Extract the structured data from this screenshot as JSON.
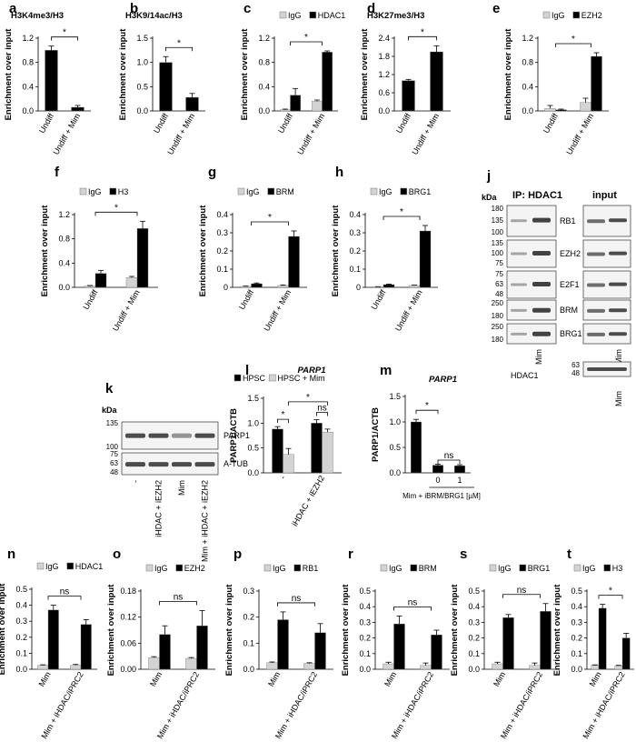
{
  "chart_data": [
    {
      "id": "a",
      "type": "bar",
      "panel_letter": "a",
      "title": "H3K4me3/H3",
      "ylabel": "Enrichment over input",
      "categories": [
        "Undiff",
        "Undiff + Mim"
      ],
      "ylim": [
        0,
        1.2
      ],
      "yticks": [
        "0.0",
        "0.4",
        "0.8",
        "1.2"
      ],
      "series": [
        {
          "color": "#000000",
          "values": [
            1.0,
            0.06
          ],
          "errors": [
            0.07,
            0.03
          ]
        }
      ],
      "significance": [
        {
          "from": 0,
          "to": 1,
          "label": "*"
        }
      ]
    },
    {
      "id": "b",
      "type": "bar",
      "panel_letter": "b",
      "title": "H3K9/14ac/H3",
      "ylabel": "Enrichment over input",
      "categories": [
        "Undiff",
        "Undiff + Mim"
      ],
      "ylim": [
        0,
        1.5
      ],
      "yticks": [
        "0.0",
        "0.5",
        "1.0",
        "1.5"
      ],
      "series": [
        {
          "color": "#000000",
          "values": [
            1.0,
            0.28
          ],
          "errors": [
            0.12,
            0.08
          ]
        }
      ],
      "significance": [
        {
          "from": 0,
          "to": 1,
          "label": "*"
        }
      ]
    },
    {
      "id": "c",
      "type": "bar",
      "panel_letter": "c",
      "title": "",
      "ylabel": "Enrichment over input",
      "categories": [
        "Undiff",
        "Undiff + Mim"
      ],
      "ylim": [
        0,
        1.2
      ],
      "yticks": [
        "0.0",
        "0.4",
        "0.8",
        "1.2"
      ],
      "series": [
        {
          "name": "IgG",
          "color": "#d3d3d3",
          "values": [
            0.02,
            0.16
          ],
          "errors": [
            0.01,
            0.02
          ]
        },
        {
          "name": "HDAC1",
          "color": "#000000",
          "values": [
            0.26,
            0.97
          ],
          "errors": [
            0.11,
            0.02
          ]
        }
      ],
      "significance": [
        {
          "from": 0,
          "to": 1,
          "label": "*"
        }
      ]
    },
    {
      "id": "d",
      "type": "bar",
      "panel_letter": "d",
      "title": "H3K27me3/H3",
      "ylabel": "Enrichment over input",
      "categories": [
        "Undiff",
        "Undiff + Mim"
      ],
      "ylim": [
        0,
        2.4
      ],
      "yticks": [
        "0.0",
        "0.6",
        "1.2",
        "1.8",
        "2.4"
      ],
      "series": [
        {
          "color": "#000000",
          "values": [
            1.0,
            1.95
          ],
          "errors": [
            0.04,
            0.2
          ]
        }
      ],
      "significance": [
        {
          "from": 0,
          "to": 1,
          "label": "*"
        }
      ]
    },
    {
      "id": "e",
      "type": "bar",
      "panel_letter": "e",
      "title": "",
      "ylabel": "Enrichment over input",
      "categories": [
        "Undiff",
        "Undiff + Mim"
      ],
      "ylim": [
        0,
        1.2
      ],
      "yticks": [
        "0.0",
        "0.4",
        "0.8",
        "1.2"
      ],
      "series": [
        {
          "name": "IgG",
          "color": "#d3d3d3",
          "values": [
            0.04,
            0.14
          ],
          "errors": [
            0.05,
            0.07
          ]
        },
        {
          "name": "EZH2",
          "color": "#000000",
          "values": [
            0.02,
            0.9
          ],
          "errors": [
            0.01,
            0.06
          ]
        }
      ],
      "significance": [
        {
          "from": 0,
          "to": 1,
          "label": "*"
        }
      ]
    },
    {
      "id": "f",
      "type": "bar",
      "panel_letter": "f",
      "title": "",
      "ylabel": "Enrichment over input",
      "categories": [
        "Undiff",
        "Undiff + Mim"
      ],
      "ylim": [
        0,
        1.2
      ],
      "yticks": [
        "0.0",
        "0.4",
        "0.8",
        "1.2"
      ],
      "series": [
        {
          "name": "IgG",
          "color": "#d3d3d3",
          "values": [
            0.02,
            0.16
          ],
          "errors": [
            0.01,
            0.02
          ]
        },
        {
          "name": "H3",
          "color": "#000000",
          "values": [
            0.23,
            0.97
          ],
          "errors": [
            0.05,
            0.12
          ]
        }
      ],
      "significance": [
        {
          "from": 0,
          "to": 1,
          "label": "*"
        }
      ]
    },
    {
      "id": "g",
      "type": "bar",
      "panel_letter": "g",
      "title": "",
      "ylabel": "Enrichment over input",
      "categories": [
        "Undiff",
        "Undiff + Mim"
      ],
      "ylim": [
        0,
        0.4
      ],
      "yticks": [
        "0",
        "0.1",
        "0.2",
        "0.3",
        "0.4"
      ],
      "series": [
        {
          "name": "IgG",
          "color": "#d3d3d3",
          "values": [
            0.005,
            0.01
          ],
          "errors": [
            0.002,
            0.003
          ]
        },
        {
          "name": "BRM",
          "color": "#000000",
          "values": [
            0.02,
            0.28
          ],
          "errors": [
            0.004,
            0.03
          ]
        }
      ],
      "significance": [
        {
          "from": 0,
          "to": 1,
          "label": "*"
        }
      ]
    },
    {
      "id": "h",
      "type": "bar",
      "panel_letter": "h",
      "title": "",
      "ylabel": "Enrichment over input",
      "categories": [
        "Undiff",
        "Undiff + Mim"
      ],
      "ylim": [
        0,
        0.4
      ],
      "yticks": [
        "0",
        "0.1",
        "0.2",
        "0.3",
        "0.4"
      ],
      "series": [
        {
          "name": "IgG",
          "color": "#d3d3d3",
          "values": [
            0.003,
            0.01
          ],
          "errors": [
            0.001,
            0.002
          ]
        },
        {
          "name": "BRG1",
          "color": "#000000",
          "values": [
            0.015,
            0.31
          ],
          "errors": [
            0.003,
            0.03
          ]
        }
      ],
      "significance": [
        {
          "from": 0,
          "to": 1,
          "label": "*"
        }
      ]
    },
    {
      "id": "l",
      "type": "bar",
      "panel_letter": "l",
      "title": "PARP1",
      "ylabel": "PARP1/ACTB",
      "categories": [
        "-",
        "iHDAC + iEZH2"
      ],
      "ylim": [
        0,
        1.5
      ],
      "yticks": [
        "0.0",
        "0.5",
        "1.0",
        "1.5"
      ],
      "series": [
        {
          "name": "HPSC",
          "color": "#000000",
          "values": [
            0.88,
            1.0
          ],
          "errors": [
            0.05,
            0.07
          ]
        },
        {
          "name": "HPSC + Mim",
          "color": "#d3d3d3",
          "values": [
            0.37,
            0.82
          ],
          "errors": [
            0.12,
            0.06
          ]
        }
      ],
      "significance": [
        {
          "from_bar": [
            0,
            0
          ],
          "to_bar": [
            0,
            1
          ],
          "label": "*"
        },
        {
          "from_bar": [
            1,
            0
          ],
          "to_bar": [
            1,
            1
          ],
          "label": "ns"
        },
        {
          "from_bar": [
            0,
            1
          ],
          "to_bar": [
            1,
            1
          ],
          "label": "*"
        }
      ]
    },
    {
      "id": "m",
      "type": "bar",
      "panel_letter": "m",
      "title": "PARP1",
      "ylabel": "PARP1/ACTB",
      "categories": [
        "",
        "0",
        "1"
      ],
      "xlabel": "Mim + iBRM/BRG1 [µM]",
      "ylim": [
        0,
        1.5
      ],
      "yticks": [
        "0.0",
        "0.5",
        "1.0",
        "1.5"
      ],
      "series": [
        {
          "color": "#000000",
          "values": [
            1.0,
            0.15,
            0.14
          ],
          "errors": [
            0.05,
            0.02,
            0.02
          ]
        }
      ],
      "significance": [
        {
          "from": 0,
          "to": 1,
          "label": "*"
        },
        {
          "from": 1,
          "to": 2,
          "label": "ns"
        }
      ]
    },
    {
      "id": "n",
      "type": "bar",
      "panel_letter": "n",
      "title": "",
      "ylabel": "Enrichment over input",
      "categories": [
        "Mim",
        "Mim + iHDAC/iPRC2"
      ],
      "ylim": [
        0,
        0.5
      ],
      "yticks": [
        "0.0",
        "0.1",
        "0.2",
        "0.3",
        "0.4",
        "0.5"
      ],
      "series": [
        {
          "name": "IgG",
          "color": "#d3d3d3",
          "values": [
            0.025,
            0.025
          ],
          "errors": [
            0.003,
            0.005
          ]
        },
        {
          "name": "HDAC1",
          "color": "#000000",
          "values": [
            0.37,
            0.28
          ],
          "errors": [
            0.03,
            0.03
          ]
        }
      ],
      "significance": [
        {
          "from": 0,
          "to": 1,
          "label": "ns"
        }
      ]
    },
    {
      "id": "o",
      "type": "bar",
      "panel_letter": "o",
      "title": "",
      "ylabel": "Enrichment over input",
      "categories": [
        "Mim",
        "Mim + iHDAC/iPRC2"
      ],
      "ylim": [
        0,
        0.18
      ],
      "yticks": [
        "0.00",
        "0.06",
        "0.12",
        "0.18"
      ],
      "series": [
        {
          "name": "IgG",
          "color": "#d3d3d3",
          "values": [
            0.027,
            0.025
          ],
          "errors": [
            0.002,
            0.002
          ]
        },
        {
          "name": "EZH2",
          "color": "#000000",
          "values": [
            0.08,
            0.1
          ],
          "errors": [
            0.02,
            0.035
          ]
        }
      ],
      "significance": [
        {
          "from": 0,
          "to": 1,
          "label": "ns"
        }
      ]
    },
    {
      "id": "p",
      "type": "bar",
      "panel_letter": "p",
      "title": "",
      "ylabel": "Enrichment over input",
      "categories": [
        "Mim",
        "Mim + iHDAC/iPRC2"
      ],
      "ylim": [
        0,
        0.3
      ],
      "yticks": [
        "0.0",
        "0.1",
        "0.2",
        "0.3"
      ],
      "series": [
        {
          "name": "IgG",
          "color": "#d3d3d3",
          "values": [
            0.025,
            0.022
          ],
          "errors": [
            0.003,
            0.003
          ]
        },
        {
          "name": "RB1",
          "color": "#000000",
          "values": [
            0.19,
            0.14
          ],
          "errors": [
            0.03,
            0.035
          ]
        }
      ],
      "significance": [
        {
          "from": 0,
          "to": 1,
          "label": "ns"
        }
      ]
    },
    {
      "id": "r",
      "type": "bar",
      "panel_letter": "r",
      "title": "",
      "ylabel": "Enrichment over input",
      "categories": [
        "Mim",
        "Mim + iHDAC/iPRC2"
      ],
      "ylim": [
        0,
        0.5
      ],
      "yticks": [
        "0.0",
        "0.1",
        "0.2",
        "0.3",
        "0.4",
        "0.5"
      ],
      "series": [
        {
          "name": "IgG",
          "color": "#d3d3d3",
          "values": [
            0.035,
            0.025
          ],
          "errors": [
            0.01,
            0.015
          ]
        },
        {
          "name": "BRM",
          "color": "#000000",
          "values": [
            0.29,
            0.22
          ],
          "errors": [
            0.05,
            0.03
          ]
        }
      ],
      "significance": [
        {
          "from": 0,
          "to": 1,
          "label": "ns"
        }
      ]
    },
    {
      "id": "s",
      "type": "bar",
      "panel_letter": "s",
      "title": "",
      "ylabel": "Enrichment over input",
      "categories": [
        "Mim",
        "Mim + iHDAC/iPRC2"
      ],
      "ylim": [
        0,
        0.5
      ],
      "yticks": [
        "0.0",
        "0.1",
        "0.2",
        "0.3",
        "0.4",
        "0.5"
      ],
      "series": [
        {
          "name": "IgG",
          "color": "#d3d3d3",
          "values": [
            0.035,
            0.025
          ],
          "errors": [
            0.01,
            0.015
          ]
        },
        {
          "name": "BRG1",
          "color": "#000000",
          "values": [
            0.33,
            0.37
          ],
          "errors": [
            0.02,
            0.05
          ]
        }
      ],
      "significance": [
        {
          "from": 0,
          "to": 1,
          "label": "ns"
        }
      ]
    },
    {
      "id": "t",
      "type": "bar",
      "panel_letter": "t",
      "title": "",
      "ylabel": "Enrichment over input",
      "categories": [
        "Mim",
        "Mim + iHDAC/iPRC2"
      ],
      "ylim": [
        0,
        0.5
      ],
      "yticks": [
        "0.0",
        "0.1",
        "0.2",
        "0.3",
        "0.4",
        "0.5"
      ],
      "series": [
        {
          "name": "IgG",
          "color": "#d3d3d3",
          "values": [
            0.025,
            0.022
          ],
          "errors": [
            0.003,
            0.003
          ]
        },
        {
          "name": "H3",
          "color": "#000000",
          "values": [
            0.39,
            0.2
          ],
          "errors": [
            0.025,
            0.03
          ]
        }
      ],
      "significance": [
        {
          "from": 0,
          "to": 1,
          "label": "*"
        }
      ]
    }
  ],
  "blots": {
    "j": {
      "panel_letter": "j",
      "kda_label": "kDa",
      "ip_title": "IP: HDAC1",
      "input_title": "input",
      "rows": [
        {
          "label": "RB1",
          "markers": [
            "180",
            "135",
            "100"
          ]
        },
        {
          "label": "EZH2",
          "markers": [
            "135",
            "100",
            "75"
          ]
        },
        {
          "label": "E2F1",
          "markers": [
            "75",
            "63",
            "48"
          ]
        },
        {
          "label": "BRM",
          "markers": [
            "250",
            "180"
          ]
        },
        {
          "label": "BRG1",
          "markers": [
            "250",
            "180"
          ]
        }
      ],
      "lane_label": "Mim",
      "hdac_label": "HDAC1",
      "hdac_markers": [
        "63",
        "48"
      ]
    },
    "k": {
      "panel_letter": "k",
      "kda_label": "kDa",
      "rows": [
        {
          "label": "PARP1",
          "markers": [
            "135",
            "100"
          ]
        },
        {
          "label": "A-TUB",
          "markers": [
            "75",
            "63",
            "48"
          ]
        }
      ],
      "lane_labels": [
        "-",
        "iHDAC + iEZH2",
        "Mim",
        "Mim + iHDAC + iEZH2"
      ]
    }
  }
}
